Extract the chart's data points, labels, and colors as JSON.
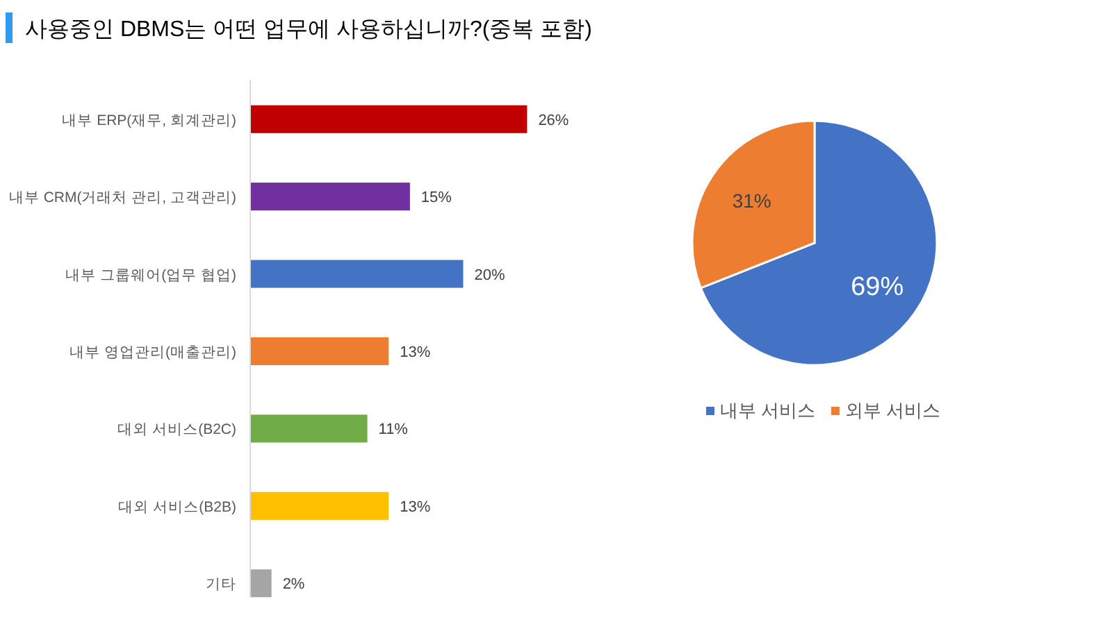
{
  "chart_data": [
    {
      "type": "bar",
      "orientation": "horizontal",
      "title": "사용중인 DBMS는 어떤 업무에 사용하십니까?(중복 포함)",
      "categories": [
        "내부 ERP(재무, 회계관리)",
        "내부 CRM(거래처 관리, 고객관리)",
        "내부 그룹웨어(업무 협업)",
        "내부 영업관리(매출관리)",
        "대외 서비스(B2C)",
        "대외 서비스(B2B)",
        "기타"
      ],
      "values": [
        26,
        15,
        20,
        13,
        11,
        13,
        2
      ],
      "colors": [
        "#c00000",
        "#7030a0",
        "#4472c4",
        "#ed7d31",
        "#70ad47",
        "#ffc000",
        "#a5a5a5"
      ],
      "value_labels": [
        "26%",
        "15%",
        "20%",
        "13%",
        "11%",
        "13%",
        "2%"
      ]
    },
    {
      "type": "pie",
      "categories": [
        "내부 서비스",
        "외부 서비스"
      ],
      "values": [
        69,
        31
      ],
      "colors": [
        "#4472c4",
        "#ed7d31"
      ],
      "value_labels": [
        "69%",
        "31%"
      ],
      "legend": "bottom"
    }
  ]
}
